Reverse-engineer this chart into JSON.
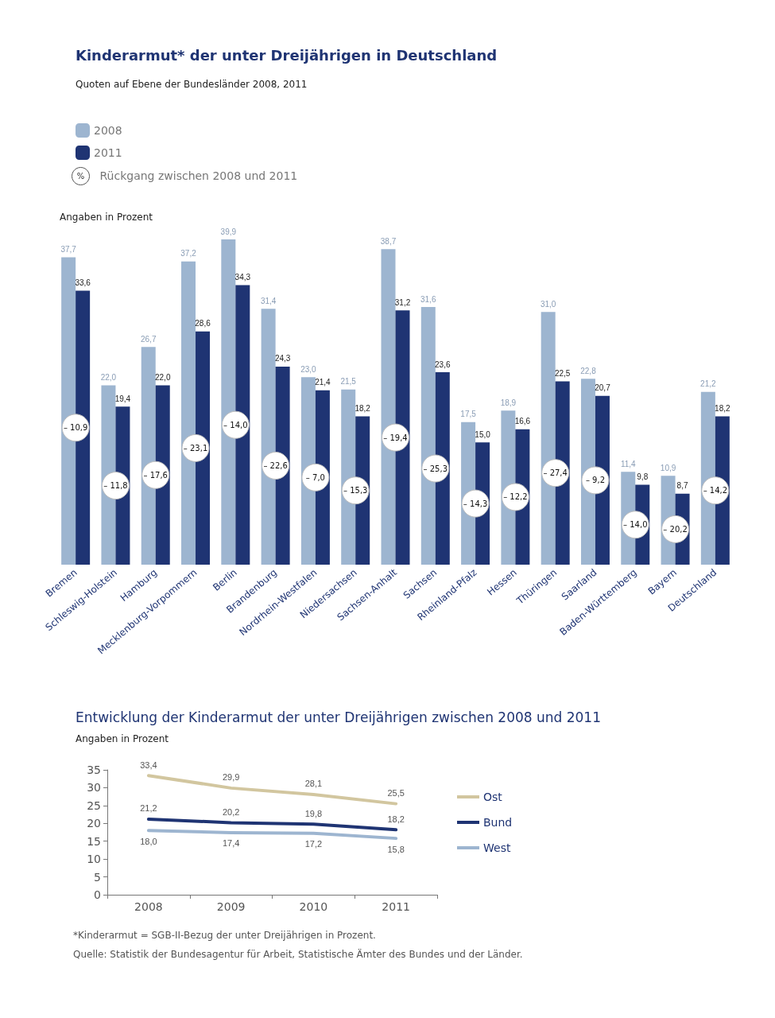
{
  "chart_data": [
    {
      "type": "bar",
      "title": "Kinderarmut* der unter Dreijährigen in Deutschland",
      "subtitle": "Quoten auf Ebene der Bundesländer 2008, 2011",
      "ylabel": "Angaben in Prozent",
      "categories": [
        "Bremen",
        "Schleswig-Holstein",
        "Hamburg",
        "Mecklenburg-Vorpommern",
        "Berlin",
        "Brandenburg",
        "Nordrhein-Westfalen",
        "Niedersachsen",
        "Sachsen-Anhalt",
        "Sachsen",
        "Rheinland-Pfalz",
        "Hessen",
        "Thüringen",
        "Saarland",
        "Baden-Württemberg",
        "Bayern",
        "Deutschland"
      ],
      "series": [
        {
          "name": "2008",
          "color": "#9db5d0",
          "values": [
            37.7,
            22.0,
            26.7,
            37.2,
            39.9,
            31.4,
            23.0,
            21.5,
            38.7,
            31.6,
            17.5,
            18.9,
            31.0,
            22.8,
            11.4,
            10.9,
            21.2
          ],
          "value_labels": [
            "37,7",
            "22,0",
            "26,7",
            "37,2",
            "39,9",
            "31,4",
            "23,0",
            "21,5",
            "38,7",
            "31,6",
            "17,5",
            "18,9",
            "31,0",
            "22,8",
            "11,4",
            "10,9",
            "21,2"
          ]
        },
        {
          "name": "2011",
          "color": "#1f3473",
          "values": [
            33.6,
            19.4,
            22.0,
            28.6,
            34.3,
            24.3,
            21.4,
            18.2,
            31.2,
            23.6,
            15.0,
            16.6,
            22.5,
            20.7,
            9.8,
            8.7,
            18.2
          ],
          "value_labels": [
            "33,6",
            "19,4",
            "22,0",
            "28,6",
            "34,3",
            "24,3",
            "21,4",
            "18,2",
            "31,2",
            "23,6",
            "15,0",
            "16,6",
            "22,5",
            "20,7",
            "9,8",
            "8,7",
            "18,2"
          ]
        }
      ],
      "annotations": [
        "%",
        "Rückgang zwischen 2008 und 2011",
        {
          "text": "– 10,9",
          "x": "Bremen"
        },
        {
          "text": "– 11,8",
          "x": "Schleswig-Holstein"
        },
        {
          "text": "– 17,6",
          "x": "Hamburg"
        },
        {
          "text": "– 23,1",
          "x": "Mecklenburg-Vorpommern"
        },
        {
          "text": "– 14,0",
          "x": "Berlin"
        },
        {
          "text": "– 22,6",
          "x": "Brandenburg"
        },
        {
          "text": "– 7,0",
          "x": "Nordrhein-Westfalen"
        },
        {
          "text": "– 15,3",
          "x": "Niedersachsen"
        },
        {
          "text": "– 19,4",
          "x": "Sachsen-Anhalt"
        },
        {
          "text": "– 25,3",
          "x": "Sachsen"
        },
        {
          "text": "– 14,3",
          "x": "Rheinland-Pfalz"
        },
        {
          "text": "– 12,2",
          "x": "Hessen"
        },
        {
          "text": "– 27,4",
          "x": "Thüringen"
        },
        {
          "text": "– 9,2",
          "x": "Saarland"
        },
        {
          "text": "– 14,0",
          "x": "Baden-Württemberg"
        },
        {
          "text": "– 20,2",
          "x": "Bayern"
        },
        {
          "text": "– 14,2",
          "x": "Deutschland"
        }
      ],
      "legend": "top left",
      "tick_labels": "x",
      "grid": false
    },
    {
      "type": "line",
      "title": "Entwicklung der Kinderarmut der unter Dreijährigen zwischen 2008 und 2011",
      "ylabel": "Angaben in Prozent",
      "categories": [
        "2008",
        "2009",
        "2010",
        "2011"
      ],
      "ylim": [
        0,
        35
      ],
      "yticks": [
        0,
        5,
        10,
        15,
        20,
        25,
        30,
        35
      ],
      "series": [
        {
          "name": "Ost",
          "color": "#d2c69f",
          "values": [
            33.4,
            29.9,
            28.1,
            25.5
          ],
          "value_labels": [
            "33,4",
            "29,9",
            "28,1",
            "25,5"
          ]
        },
        {
          "name": "Bund",
          "color": "#1f3473",
          "values": [
            21.2,
            20.2,
            19.8,
            18.2
          ],
          "value_labels": [
            "21,2",
            "20,2",
            "19,8",
            "18,2"
          ]
        },
        {
          "name": "West",
          "color": "#9db5d0",
          "values": [
            18.0,
            17.4,
            17.2,
            15.8
          ],
          "value_labels": [
            "18,0",
            "17,4",
            "17,2",
            "15,8"
          ]
        }
      ],
      "marker": "none",
      "line_style": "solid",
      "legend": "right",
      "grid": false,
      "annotations": [
        "*Kinderarmut = SGB-II-Bezug der unter Dreijährigen in Prozent.",
        "Quelle: Statistik der Bundesagentur für Arbeit, Statistische Ämter des Bundes und der Länder."
      ]
    }
  ]
}
